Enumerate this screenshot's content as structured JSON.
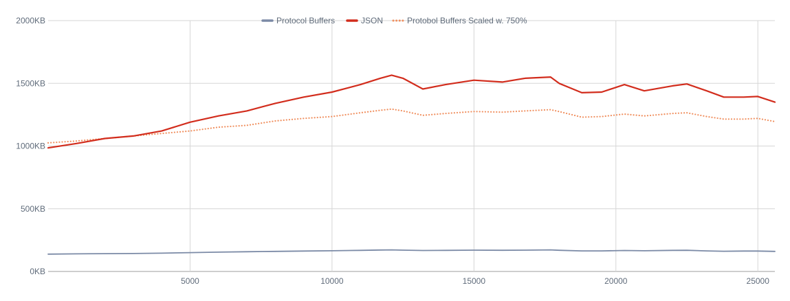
{
  "chart_data": {
    "type": "line",
    "title": "",
    "xlabel": "",
    "ylabel": "",
    "xlim": [
      0,
      25600
    ],
    "ylim": [
      0,
      2000
    ],
    "x_ticks": [
      5000,
      10000,
      15000,
      20000,
      25000
    ],
    "x_tick_labels": [
      "5000",
      "10000",
      "15000",
      "20000",
      "25000"
    ],
    "y_ticks": [
      0,
      500,
      1000,
      1500,
      2000
    ],
    "y_tick_labels": [
      "0KB",
      "500KB",
      "1000KB",
      "1500KB",
      "2000KB"
    ],
    "grid": true,
    "legend_position": "top",
    "x": [
      0,
      1000,
      2000,
      3000,
      4000,
      5000,
      6000,
      7000,
      8000,
      9000,
      10000,
      11000,
      11700,
      12100,
      12500,
      13200,
      14000,
      15000,
      16000,
      16800,
      17700,
      18000,
      18800,
      19500,
      20300,
      21000,
      22000,
      22500,
      23200,
      23800,
      24500,
      25000,
      25600
    ],
    "series": [
      {
        "name": "Protocol Buffers",
        "color": "#7b8aa6",
        "style": "solid",
        "values": [
          138,
          140,
          142,
          143,
          146,
          150,
          154,
          157,
          160,
          163,
          165,
          168,
          171,
          172,
          170,
          167,
          168,
          170,
          169,
          170,
          172,
          169,
          164,
          164,
          167,
          165,
          168,
          169,
          164,
          161,
          163,
          163,
          160
        ]
      },
      {
        "name": "JSON",
        "color": "#d22c1c",
        "style": "solid",
        "values": [
          985,
          1020,
          1060,
          1080,
          1120,
          1190,
          1240,
          1280,
          1340,
          1390,
          1430,
          1490,
          1540,
          1565,
          1540,
          1455,
          1490,
          1525,
          1510,
          1540,
          1550,
          1500,
          1425,
          1430,
          1490,
          1440,
          1480,
          1495,
          1440,
          1390,
          1390,
          1395,
          1350
        ]
      },
      {
        "name": "Protobol Buffers Scaled w. 750%",
        "color": "#f09060",
        "style": "dotted",
        "values": [
          1025,
          1040,
          1060,
          1080,
          1100,
          1120,
          1150,
          1165,
          1200,
          1220,
          1235,
          1265,
          1285,
          1295,
          1280,
          1245,
          1260,
          1275,
          1270,
          1280,
          1290,
          1275,
          1230,
          1235,
          1255,
          1240,
          1260,
          1265,
          1235,
          1215,
          1215,
          1220,
          1195
        ]
      }
    ]
  }
}
